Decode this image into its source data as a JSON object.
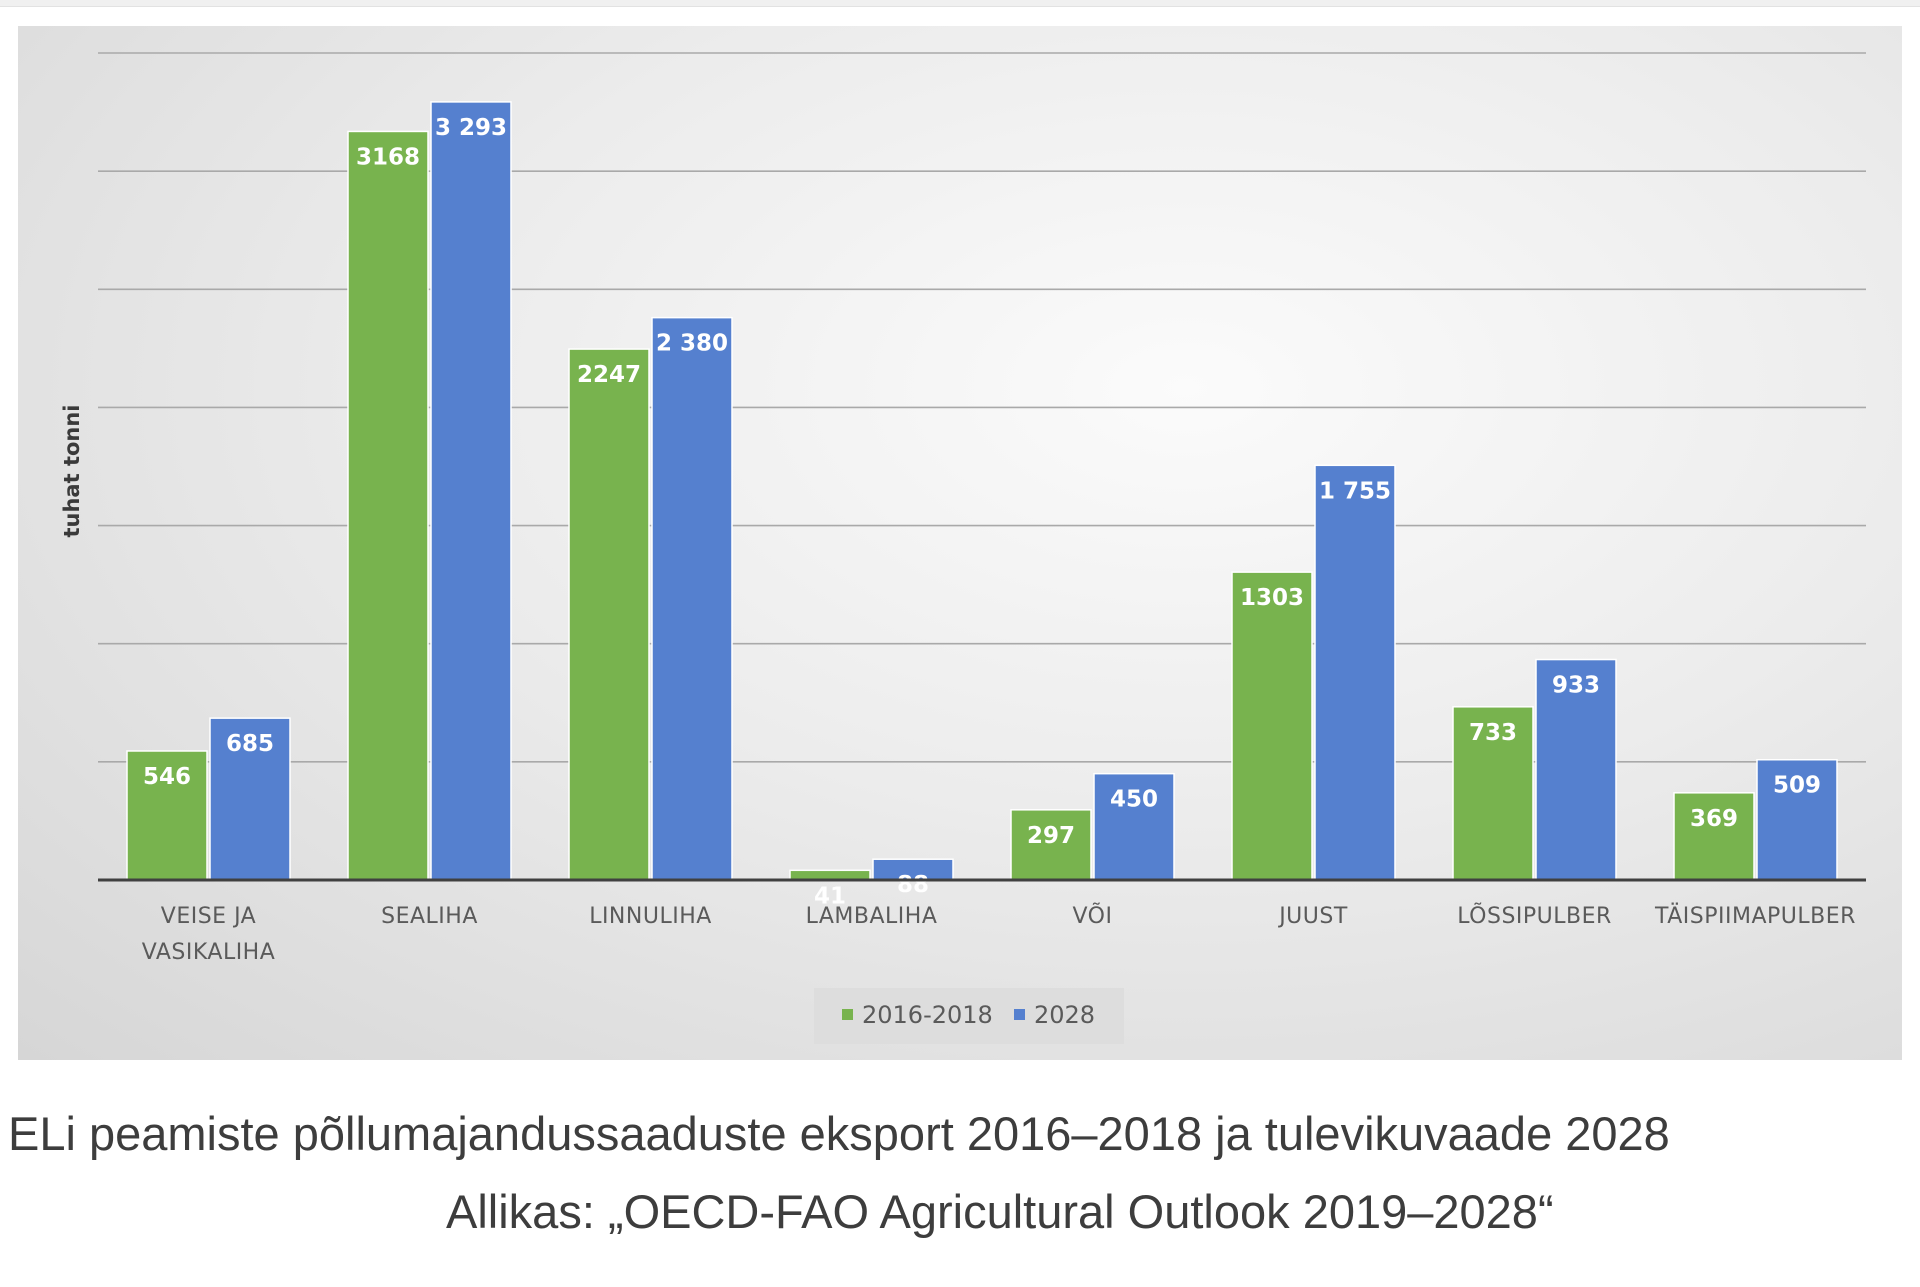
{
  "chart_data": {
    "type": "bar",
    "ylabel": "tuhat tonni",
    "ylim": [
      0,
      3500
    ],
    "grid": true,
    "legend_position": "bottom",
    "categories": [
      [
        "VEISE JA",
        "VASIKALIHA"
      ],
      [
        "SEALIHA"
      ],
      [
        "LINNULIHA"
      ],
      [
        "LAMBALIHA"
      ],
      [
        "VÕI"
      ],
      [
        "JUUST"
      ],
      [
        "LÕSSIPULBER"
      ],
      [
        "TÄISPIIMAPULBER"
      ]
    ],
    "series": [
      {
        "name": "2016-2018",
        "color": "#78b34e",
        "values": [
          546,
          3168,
          2247,
          41,
          297,
          1303,
          733,
          369
        ],
        "labels": [
          "546",
          "3168",
          "2247",
          "41",
          "297",
          "1303",
          "733",
          "369"
        ]
      },
      {
        "name": "2028",
        "color": "#5580cf",
        "values": [
          685,
          3293,
          2380,
          88,
          450,
          1755,
          933,
          509
        ],
        "labels": [
          "685",
          "3 293",
          "2 380",
          "88",
          "450",
          "1 755",
          "933",
          "509"
        ]
      }
    ]
  },
  "caption": {
    "title": "ELi peamiste põllumajandussaaduste eksport 2016–2018 ja tulevikuvaade 2028",
    "source": "Allikas: „OECD-FAO Agricultural Outlook 2019–2028“"
  }
}
